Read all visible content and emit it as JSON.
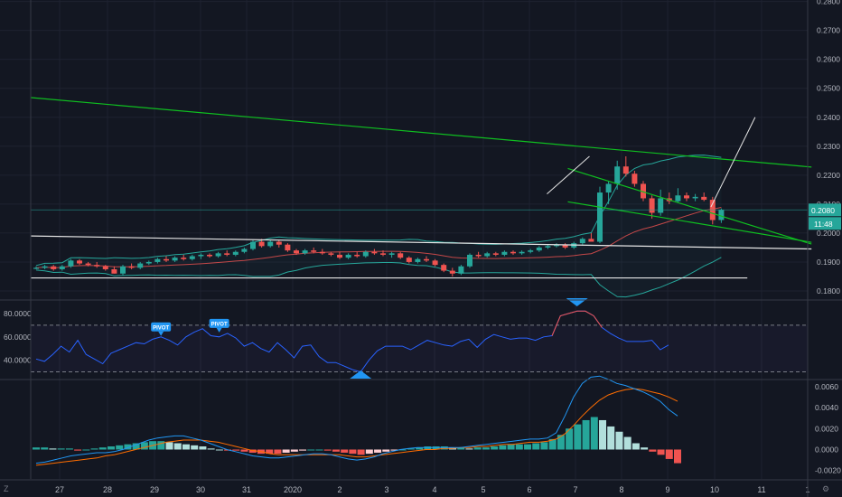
{
  "colors": {
    "background": "#131722",
    "grid": "#1e2230",
    "border": "#363a45",
    "axis_text": "#b2b5be",
    "candle_up": "#26a69a",
    "candle_down": "#ef5350",
    "trendline_green": "#0fbf20",
    "trendline_white": "#e6e6e6",
    "bollinger_band": "#26a69a",
    "bollinger_basis": "#ef5350",
    "rsi_line": "#2962ff",
    "rsi_level": "#787b86",
    "pivot_label": "#2196f3",
    "macd_line": "#2196f3",
    "signal_line": "#ff6d00",
    "hist_up_strong": "#26a69a",
    "hist_up_weak": "#b2dfdb",
    "hist_down_strong": "#ef5350",
    "hist_down_weak": "#ffcdd2",
    "price_badge": "#26a69a"
  },
  "chart_data": [
    {
      "type": "candlestick",
      "pane": "price",
      "y_ticks": [
        "0.2800",
        "0.2700",
        "0.2600",
        "0.2500",
        "0.2400",
        "0.2300",
        "0.2200",
        "0.2100",
        "0.2000",
        "0.1900",
        "0.1800"
      ],
      "ylim": [
        0.1775,
        0.2805
      ],
      "current_price_label": "0.2080",
      "current_price": 0.208,
      "countdown_label": "11:48",
      "ohlc": [
        [
          0.188,
          0.1885,
          0.1875,
          0.188
        ],
        [
          0.188,
          0.189,
          0.1875,
          0.1885
        ],
        [
          0.1885,
          0.189,
          0.187,
          0.1875
        ],
        [
          0.1875,
          0.189,
          0.187,
          0.1885
        ],
        [
          0.1885,
          0.191,
          0.188,
          0.1905
        ],
        [
          0.1905,
          0.191,
          0.189,
          0.1895
        ],
        [
          0.1895,
          0.19,
          0.1885,
          0.189
        ],
        [
          0.189,
          0.19,
          0.188,
          0.1885
        ],
        [
          0.1885,
          0.189,
          0.187,
          0.1875
        ],
        [
          0.1875,
          0.1885,
          0.186,
          0.186
        ],
        [
          0.186,
          0.189,
          0.1855,
          0.1885
        ],
        [
          0.1885,
          0.1895,
          0.1875,
          0.188
        ],
        [
          0.188,
          0.19,
          0.1875,
          0.1895
        ],
        [
          0.1895,
          0.1905,
          0.189,
          0.19
        ],
        [
          0.19,
          0.1915,
          0.1895,
          0.191
        ],
        [
          0.191,
          0.192,
          0.19,
          0.1905
        ],
        [
          0.1905,
          0.192,
          0.19,
          0.1915
        ],
        [
          0.1915,
          0.1925,
          0.1905,
          0.191
        ],
        [
          0.191,
          0.1925,
          0.1905,
          0.192
        ],
        [
          0.192,
          0.193,
          0.191,
          0.1925
        ],
        [
          0.1925,
          0.193,
          0.1915,
          0.192
        ],
        [
          0.192,
          0.1935,
          0.1915,
          0.193
        ],
        [
          0.193,
          0.194,
          0.192,
          0.1925
        ],
        [
          0.1925,
          0.194,
          0.192,
          0.1935
        ],
        [
          0.1935,
          0.195,
          0.193,
          0.1945
        ],
        [
          0.1945,
          0.1975,
          0.194,
          0.197
        ],
        [
          0.197,
          0.198,
          0.195,
          0.1955
        ],
        [
          0.1955,
          0.1975,
          0.195,
          0.197
        ],
        [
          0.197,
          0.1975,
          0.195,
          0.196
        ],
        [
          0.196,
          0.1965,
          0.1935,
          0.194
        ],
        [
          0.194,
          0.1945,
          0.1925,
          0.193
        ],
        [
          0.193,
          0.1945,
          0.1925,
          0.194
        ],
        [
          0.194,
          0.195,
          0.193,
          0.1935
        ],
        [
          0.1935,
          0.1945,
          0.1925,
          0.193
        ],
        [
          0.193,
          0.1935,
          0.192,
          0.1925
        ],
        [
          0.1925,
          0.1935,
          0.191,
          0.1915
        ],
        [
          0.1915,
          0.193,
          0.191,
          0.1925
        ],
        [
          0.1925,
          0.1935,
          0.1915,
          0.192
        ],
        [
          0.192,
          0.194,
          0.1915,
          0.1935
        ],
        [
          0.1935,
          0.1945,
          0.1925,
          0.193
        ],
        [
          0.193,
          0.194,
          0.192,
          0.1925
        ],
        [
          0.1925,
          0.1935,
          0.1915,
          0.193
        ],
        [
          0.193,
          0.1935,
          0.191,
          0.1915
        ],
        [
          0.1915,
          0.192,
          0.1895,
          0.19
        ],
        [
          0.19,
          0.1915,
          0.1895,
          0.191
        ],
        [
          0.191,
          0.192,
          0.19,
          0.1905
        ],
        [
          0.1905,
          0.191,
          0.1885,
          0.189
        ],
        [
          0.189,
          0.1895,
          0.1865,
          0.187
        ],
        [
          0.187,
          0.188,
          0.185,
          0.186
        ],
        [
          0.186,
          0.189,
          0.1855,
          0.1885
        ],
        [
          0.1885,
          0.193,
          0.188,
          0.1925
        ],
        [
          0.1925,
          0.1935,
          0.1915,
          0.192
        ],
        [
          0.192,
          0.1935,
          0.1915,
          0.193
        ],
        [
          0.193,
          0.1935,
          0.192,
          0.1925
        ],
        [
          0.1925,
          0.194,
          0.192,
          0.1935
        ],
        [
          0.1935,
          0.194,
          0.1925,
          0.193
        ],
        [
          0.193,
          0.194,
          0.1925,
          0.1935
        ],
        [
          0.1935,
          0.1945,
          0.193,
          0.194
        ],
        [
          0.194,
          0.1955,
          0.1935,
          0.195
        ],
        [
          0.195,
          0.196,
          0.1945,
          0.1955
        ],
        [
          0.1955,
          0.1965,
          0.195,
          0.196
        ],
        [
          0.196,
          0.1965,
          0.1945,
          0.195
        ],
        [
          0.195,
          0.197,
          0.1945,
          0.1965
        ],
        [
          0.1965,
          0.1985,
          0.196,
          0.198
        ],
        [
          0.198,
          0.2,
          0.1975,
          0.197
        ],
        [
          0.197,
          0.216,
          0.1965,
          0.214
        ],
        [
          0.214,
          0.218,
          0.21,
          0.217
        ],
        [
          0.217,
          0.225,
          0.215,
          0.223
        ],
        [
          0.223,
          0.2265,
          0.2195,
          0.2205
        ],
        [
          0.2205,
          0.2215,
          0.216,
          0.217
        ],
        [
          0.217,
          0.218,
          0.211,
          0.212
        ],
        [
          0.212,
          0.213,
          0.205,
          0.207
        ],
        [
          0.207,
          0.215,
          0.206,
          0.212
        ],
        [
          0.212,
          0.214,
          0.21,
          0.211
        ],
        [
          0.211,
          0.2155,
          0.2105,
          0.213
        ],
        [
          0.213,
          0.214,
          0.211,
          0.212
        ],
        [
          0.212,
          0.2135,
          0.211,
          0.2125
        ],
        [
          0.2125,
          0.214,
          0.211,
          0.2115
        ],
        [
          0.2115,
          0.2125,
          0.203,
          0.2045
        ],
        [
          0.2045,
          0.2085,
          0.2035,
          0.208
        ]
      ],
      "x_labels": [
        "27",
        "28",
        "29",
        "30",
        "31",
        "2020",
        "2",
        "3",
        "4",
        "5",
        "6",
        "7",
        "8",
        "9",
        "10",
        "11",
        "1"
      ],
      "x_label_positions": [
        66,
        119,
        171,
        222,
        273,
        324,
        376,
        428,
        481,
        535,
        586,
        637,
        688,
        739,
        791,
        843,
        894
      ]
    },
    {
      "type": "line",
      "pane": "rsi",
      "y_ticks": [
        "80.0000",
        "60.0000",
        "40.0000"
      ],
      "ylim": [
        25,
        90
      ],
      "levels": [
        70,
        30
      ],
      "pivot_labels": [
        "PIVOT",
        "PIVOT"
      ],
      "values": [
        41,
        39,
        45,
        52,
        47,
        57,
        45,
        41,
        37,
        46,
        49,
        52,
        55,
        54,
        58,
        60,
        57,
        53,
        60,
        64,
        67,
        61,
        60,
        63,
        59,
        52,
        55,
        50,
        47,
        55,
        49,
        42,
        52,
        53,
        43,
        38,
        38,
        35,
        32,
        30,
        40,
        48,
        52,
        52,
        52,
        49,
        53,
        57,
        55,
        53,
        52,
        56,
        58,
        51,
        58,
        62,
        60,
        58,
        59,
        59,
        57,
        60,
        61,
        78,
        80,
        82,
        82,
        78,
        68,
        63,
        59,
        56,
        56,
        56,
        57,
        49,
        53
      ]
    },
    {
      "type": "bar",
      "pane": "macd",
      "y_ticks": [
        "0.0060",
        "0.0040",
        "0.0020",
        "0.0000",
        "-0.0020"
      ],
      "ylim": [
        -0.0028,
        0.0065
      ],
      "histogram": [
        0.0002,
        0.0002,
        0.0001,
        0.0001,
        0.0001,
        -0.0001,
        0.0,
        0.0001,
        0.0002,
        0.0003,
        0.0004,
        0.0005,
        0.0006,
        0.0007,
        0.0008,
        0.0008,
        0.0007,
        0.0006,
        0.0005,
        0.0004,
        0.0003,
        0.0001,
        0.0,
        -0.0001,
        -0.0001,
        -0.0002,
        -0.0003,
        -0.0004,
        -0.0004,
        -0.0004,
        -0.0003,
        -0.0002,
        -0.0001,
        0.0,
        0.0,
        -0.0001,
        -0.0002,
        -0.0003,
        -0.0004,
        -0.0005,
        -0.0004,
        -0.0003,
        -0.0002,
        -0.0001,
        0.0,
        0.0001,
        0.0002,
        0.0003,
        0.0003,
        0.0003,
        0.0002,
        0.0002,
        0.0001,
        0.0002,
        0.0002,
        0.0003,
        0.0004,
        0.0005,
        0.0005,
        0.0005,
        0.0006,
        0.0007,
        0.001,
        0.0014,
        0.002,
        0.0024,
        0.0028,
        0.0031,
        0.0028,
        0.0022,
        0.0017,
        0.0012,
        0.0006,
        0.0002,
        -0.0002,
        -0.0005,
        -0.0009,
        -0.0013
      ],
      "macd": [
        -0.0013,
        -0.0012,
        -0.001,
        -0.0008,
        -0.0006,
        -0.0005,
        -0.0004,
        -0.0003,
        -0.0003,
        -0.0002,
        0.0,
        0.0003,
        0.0006,
        0.0009,
        0.0011,
        0.0012,
        0.0013,
        0.0013,
        0.0011,
        0.0009,
        0.0006,
        0.0003,
        0.0,
        -0.0002,
        -0.0004,
        -0.0006,
        -0.0007,
        -0.0008,
        -0.0008,
        -0.0007,
        -0.0006,
        -0.0005,
        -0.0004,
        -0.0004,
        -0.0005,
        -0.0007,
        -0.0009,
        -0.001,
        -0.0009,
        -0.0007,
        -0.0004,
        -0.0002,
        0.0,
        0.0001,
        0.0002,
        0.0002,
        0.0002,
        0.0002,
        0.0002,
        0.0002,
        0.0003,
        0.0004,
        0.0005,
        0.0006,
        0.0007,
        0.0008,
        0.0009,
        0.001,
        0.001,
        0.0011,
        0.0016,
        0.0032,
        0.005,
        0.0063,
        0.0069,
        0.007,
        0.0067,
        0.0063,
        0.0061,
        0.0058,
        0.0055,
        0.0051,
        0.0046,
        0.0038,
        0.0032
      ],
      "signal": [
        -0.0015,
        -0.0014,
        -0.0013,
        -0.0012,
        -0.0011,
        -0.001,
        -0.0009,
        -0.0008,
        -0.0006,
        -0.0005,
        -0.0003,
        -0.0001,
        0.0001,
        0.0003,
        0.0005,
        0.0007,
        0.0008,
        0.0009,
        0.0009,
        0.0009,
        0.0008,
        0.0007,
        0.0005,
        0.0003,
        0.0001,
        -0.0001,
        -0.0002,
        -0.0004,
        -0.0005,
        -0.0005,
        -0.0005,
        -0.0005,
        -0.0005,
        -0.0005,
        -0.0005,
        -0.0005,
        -0.0006,
        -0.0007,
        -0.0007,
        -0.0006,
        -0.0005,
        -0.0004,
        -0.0003,
        -0.0002,
        -0.0001,
        0.0,
        0.0,
        0.0001,
        0.0001,
        0.0002,
        0.0002,
        0.0003,
        0.0003,
        0.0004,
        0.0005,
        0.0005,
        0.0006,
        0.0007,
        0.0007,
        0.0008,
        0.001,
        0.0015,
        0.0023,
        0.0032,
        0.004,
        0.0047,
        0.0052,
        0.0055,
        0.0057,
        0.0058,
        0.0057,
        0.0055,
        0.0053,
        0.005,
        0.0046
      ]
    }
  ]
}
